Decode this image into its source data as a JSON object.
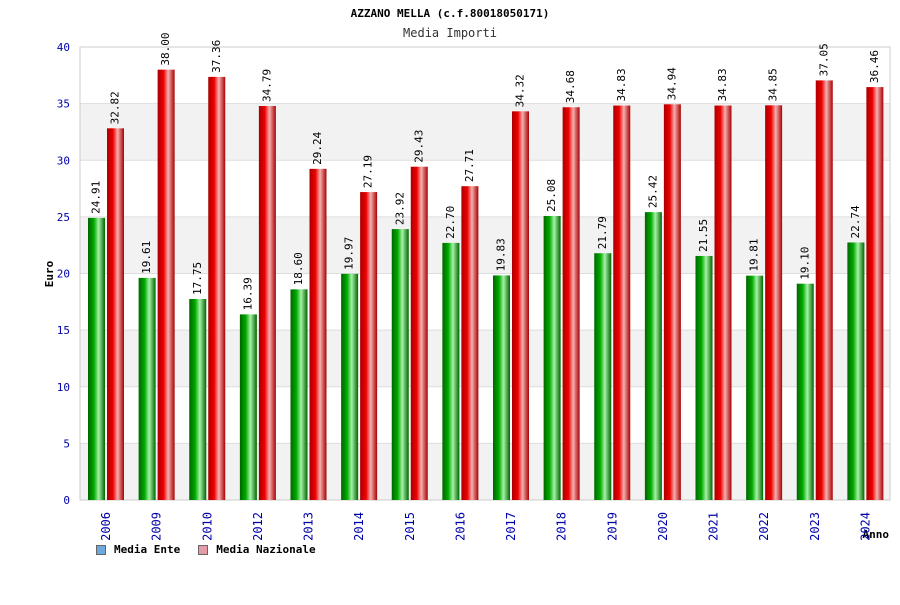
{
  "chart_data": {
    "type": "bar",
    "title": "AZZANO MELLA (c.f.80018050171)",
    "subtitle": "Media Importi",
    "xlabel": "Anno",
    "ylabel": "Euro",
    "ylim": [
      0,
      40
    ],
    "yticks": [
      "0",
      "5",
      "10",
      "15",
      "20",
      "25",
      "30",
      "35",
      "40"
    ],
    "grid": true,
    "legend_position": "bottom-left",
    "categories": [
      "2006",
      "2009",
      "2010",
      "2012",
      "2013",
      "2014",
      "2015",
      "2016",
      "2017",
      "2018",
      "2019",
      "2020",
      "2021",
      "2022",
      "2023",
      "2024"
    ],
    "series": [
      {
        "name": "Media Ente",
        "values": [
          24.91,
          19.61,
          17.75,
          16.39,
          18.6,
          19.97,
          23.92,
          22.7,
          19.83,
          25.08,
          21.79,
          25.42,
          21.55,
          19.81,
          19.1,
          22.74
        ],
        "labels": [
          "24.91",
          "19.61",
          "17.75",
          "16.39",
          "18.60",
          "19.97",
          "23.92",
          "22.70",
          "19.83",
          "25.08",
          "21.79",
          "25.42",
          "21.55",
          "19.81",
          "19.10",
          "22.74"
        ]
      },
      {
        "name": "Media Nazionale",
        "values": [
          32.82,
          38.0,
          37.36,
          34.79,
          29.24,
          27.19,
          29.43,
          27.71,
          34.32,
          34.68,
          34.83,
          34.94,
          34.83,
          34.85,
          37.05,
          36.46
        ],
        "labels": [
          "32.82",
          "38.00",
          "37.36",
          "34.79",
          "29.24",
          "27.19",
          "29.43",
          "27.71",
          "34.32",
          "34.68",
          "34.83",
          "34.94",
          "34.83",
          "34.85",
          "37.05",
          "36.46"
        ]
      }
    ]
  },
  "legend": {
    "items": [
      {
        "label": "Media Ente",
        "color": "#6fa8dc"
      },
      {
        "label": "Media Nazionale",
        "color": "#e69aaa"
      }
    ]
  },
  "colors": {
    "ente_bar": "#00aa00",
    "ente_bar_light": "#a6f2a6",
    "ente_bar_dark": "#006600",
    "naz_bar": "#ee0000",
    "naz_bar_light": "#f4b0b0",
    "naz_bar_dark": "#aa0000",
    "axis_text": "#0000aa",
    "band": "#f2f2f2"
  }
}
